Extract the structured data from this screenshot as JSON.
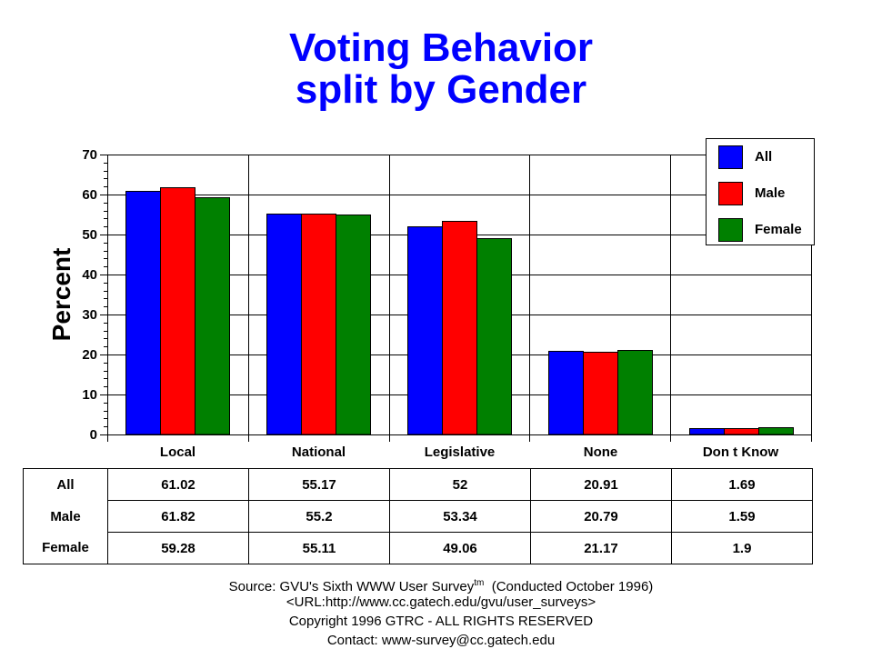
{
  "chart_data": {
    "type": "bar",
    "title": "Voting Behavior",
    "subtitle": "split by Gender",
    "xlabel": "",
    "ylabel": "Percent",
    "ylim": [
      0,
      70
    ],
    "yticks": [
      0,
      10,
      20,
      30,
      40,
      50,
      60,
      70
    ],
    "grid": true,
    "legend_position": "top-right",
    "categories": [
      "Local",
      "National",
      "Legislative",
      "None",
      "Don t Know"
    ],
    "series": [
      {
        "name": "All",
        "color": "#0000ff",
        "values": [
          61.02,
          55.17,
          52,
          20.91,
          1.69
        ],
        "labels": [
          "61.02",
          "55.17",
          "52",
          "20.91",
          "1.69"
        ]
      },
      {
        "name": "Male",
        "color": "#ff0000",
        "values": [
          61.82,
          55.2,
          53.34,
          20.79,
          1.59
        ],
        "labels": [
          "61.82",
          "55.2",
          "53.34",
          "20.79",
          "1.59"
        ]
      },
      {
        "name": "Female",
        "color": "#008000",
        "values": [
          59.28,
          55.11,
          49.06,
          21.17,
          1.9
        ],
        "labels": [
          "59.28",
          "55.11",
          "49.06",
          "21.17",
          "1.9"
        ]
      }
    ]
  },
  "footer": {
    "source_prefix": "Source: GVU's Sixth WWW User Survey",
    "tm": "tm",
    "source_suffix": "  (Conducted October 1996)",
    "url": "<URL:http://www.cc.gatech.edu/gvu/user_surveys>",
    "copyright": "Copyright 1996 GTRC -  ALL RIGHTS RESERVED",
    "contact": "Contact: www-survey@cc.gatech.edu"
  }
}
